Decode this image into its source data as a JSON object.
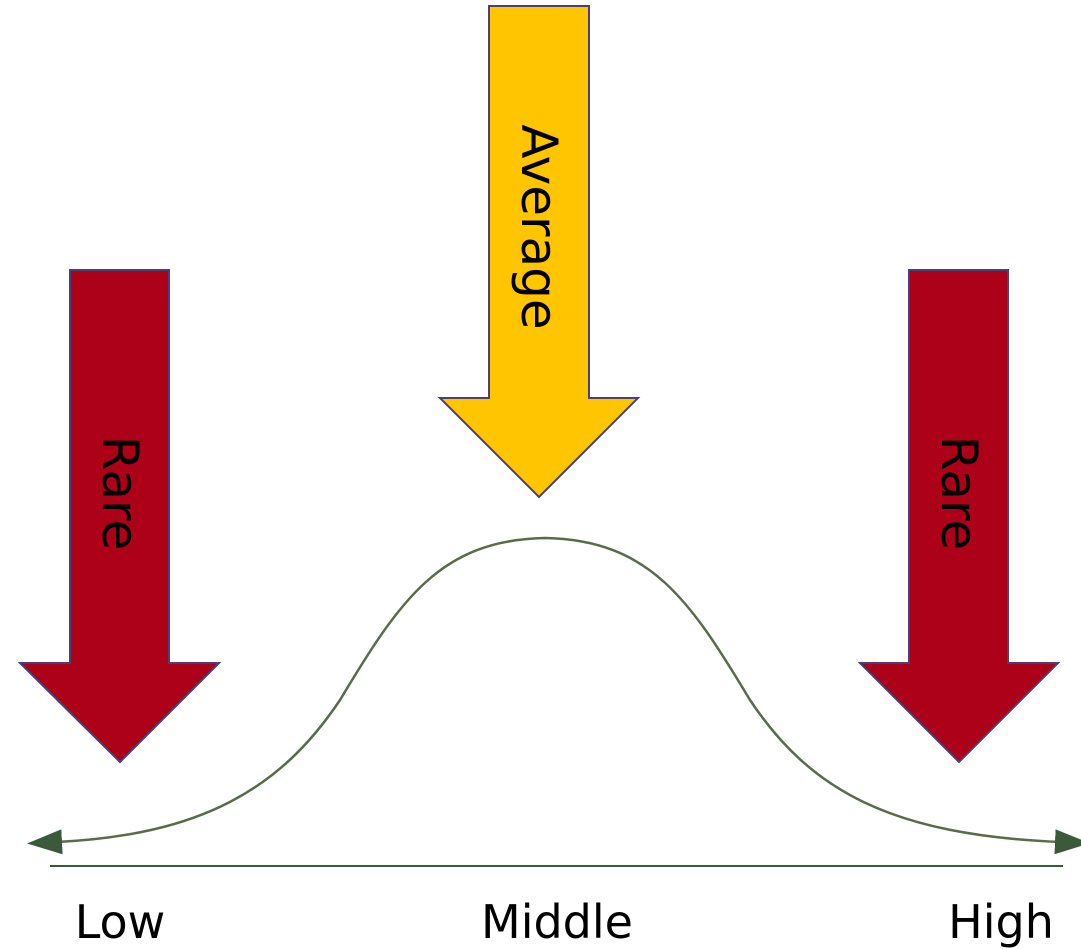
{
  "arrows": {
    "left": {
      "label": "Rare",
      "color": "#ad0019"
    },
    "center": {
      "label": "Average",
      "color": "#ffc600"
    },
    "right": {
      "label": "Rare",
      "color": "#ad0019"
    },
    "outline_color": "#4a3f7a"
  },
  "curve": {
    "color": "#5a6b4a",
    "shape": "bell-curve"
  },
  "baseline": {
    "color": "#3a5a3a"
  },
  "axis_labels": {
    "low": "Low",
    "middle": "Middle",
    "high": "High"
  }
}
